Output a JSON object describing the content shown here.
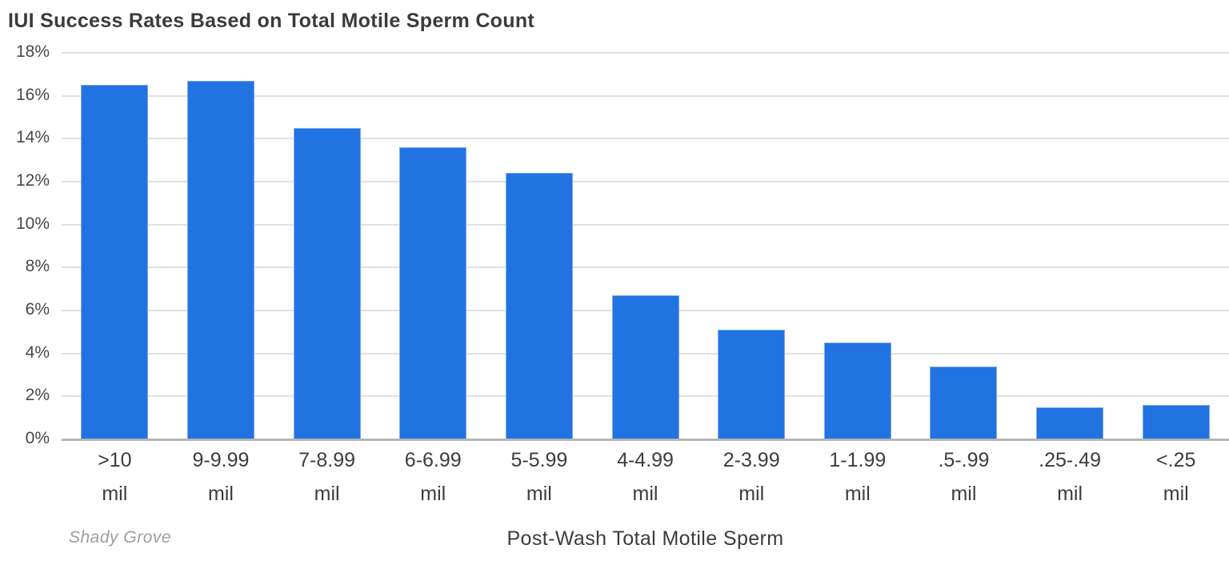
{
  "chart_data": {
    "type": "bar",
    "title": "IUI Success Rates Based on Total Motile Sperm Count",
    "xlabel": "Post-Wash Total Motile Sperm",
    "source": "Shady Grove",
    "unit_line": "mil",
    "categories": [
      ">10",
      "9-9.99",
      "7-8.99",
      "6-6.99",
      "5-5.99",
      "4-4.99",
      "2-3.99",
      "1-1.99",
      ".5-.99",
      ".25-.49",
      "<.25"
    ],
    "values": [
      16.5,
      16.7,
      14.5,
      13.6,
      12.4,
      6.7,
      5.1,
      4.5,
      3.4,
      1.5,
      1.6
    ],
    "ylim": [
      0,
      18
    ],
    "ytick_step": 2,
    "yticks": [
      "0%",
      "2%",
      "4%",
      "6%",
      "8%",
      "10%",
      "12%",
      "14%",
      "16%",
      "18%"
    ],
    "grid": true,
    "legend": "none",
    "colors": {
      "bar": "#2173e2",
      "bar_edge": "#7ea9e9",
      "gridline": "#e1e1e1",
      "baseline": "#b5b5b5",
      "title_text": "#3b3b3b",
      "axis_text": "#3d3d3d",
      "source_text": "#9d9d9d"
    }
  }
}
